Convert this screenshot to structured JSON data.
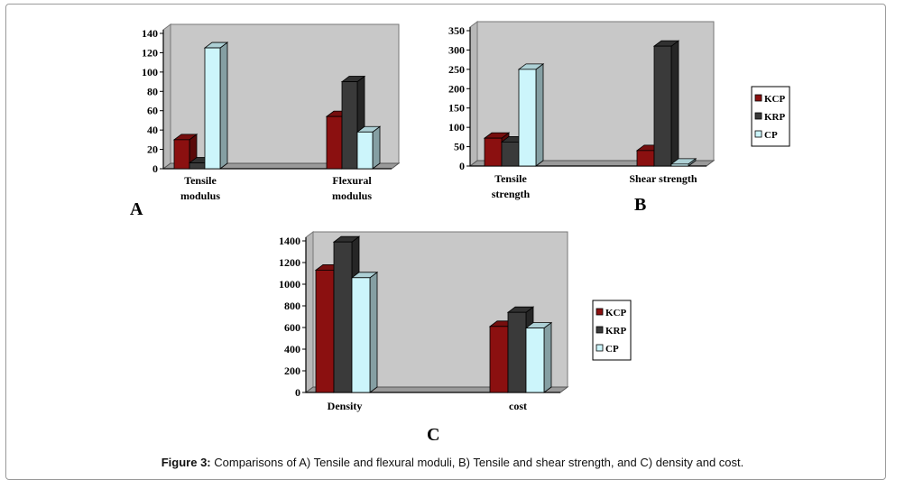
{
  "caption": {
    "prefix": "Figure 3:",
    "text": "Comparisons of A) Tensile and flexural moduli, B) Tensile and shear strength, and C) density and cost."
  },
  "colors": {
    "KCP": "#8b1010",
    "KRP": "#3a3a3a",
    "CP": "#ccf5fb",
    "wall": "#c8c8c8",
    "floor": "#9a9a9a"
  },
  "chart_data": [
    {
      "id": "A",
      "type": "bar",
      "panel_label": "A",
      "categories": [
        [
          "Tensile",
          "modulus"
        ],
        [
          "Flexural",
          "modulus"
        ]
      ],
      "series": [
        {
          "name": "KCP",
          "values": [
            30,
            54
          ]
        },
        {
          "name": "KRP",
          "values": [
            6,
            90
          ]
        },
        {
          "name": "CP",
          "values": [
            125,
            38
          ]
        }
      ],
      "ylim": [
        0,
        140
      ],
      "yticks": [
        0,
        20,
        40,
        60,
        80,
        100,
        120,
        140
      ],
      "legend": false
    },
    {
      "id": "B",
      "type": "bar",
      "panel_label": "B",
      "categories": [
        [
          "Tensile",
          "strength"
        ],
        [
          "Shear strength"
        ]
      ],
      "series": [
        {
          "name": "KCP",
          "values": [
            72,
            40
          ]
        },
        {
          "name": "KRP",
          "values": [
            62,
            310
          ]
        },
        {
          "name": "CP",
          "values": [
            250,
            5
          ]
        }
      ],
      "ylim": [
        0,
        350
      ],
      "yticks": [
        0,
        50,
        100,
        150,
        200,
        250,
        300,
        350
      ],
      "legend": true,
      "legend_position": "right"
    },
    {
      "id": "C",
      "type": "bar",
      "panel_label": "C",
      "categories": [
        [
          "Density"
        ],
        [
          "cost"
        ]
      ],
      "series": [
        {
          "name": "KCP",
          "values": [
            1130,
            610
          ]
        },
        {
          "name": "KRP",
          "values": [
            1390,
            740
          ]
        },
        {
          "name": "CP",
          "values": [
            1060,
            595
          ]
        }
      ],
      "ylim": [
        0,
        1400
      ],
      "yticks": [
        0,
        200,
        400,
        600,
        800,
        1000,
        1200,
        1400
      ],
      "legend": true,
      "legend_position": "right"
    }
  ]
}
